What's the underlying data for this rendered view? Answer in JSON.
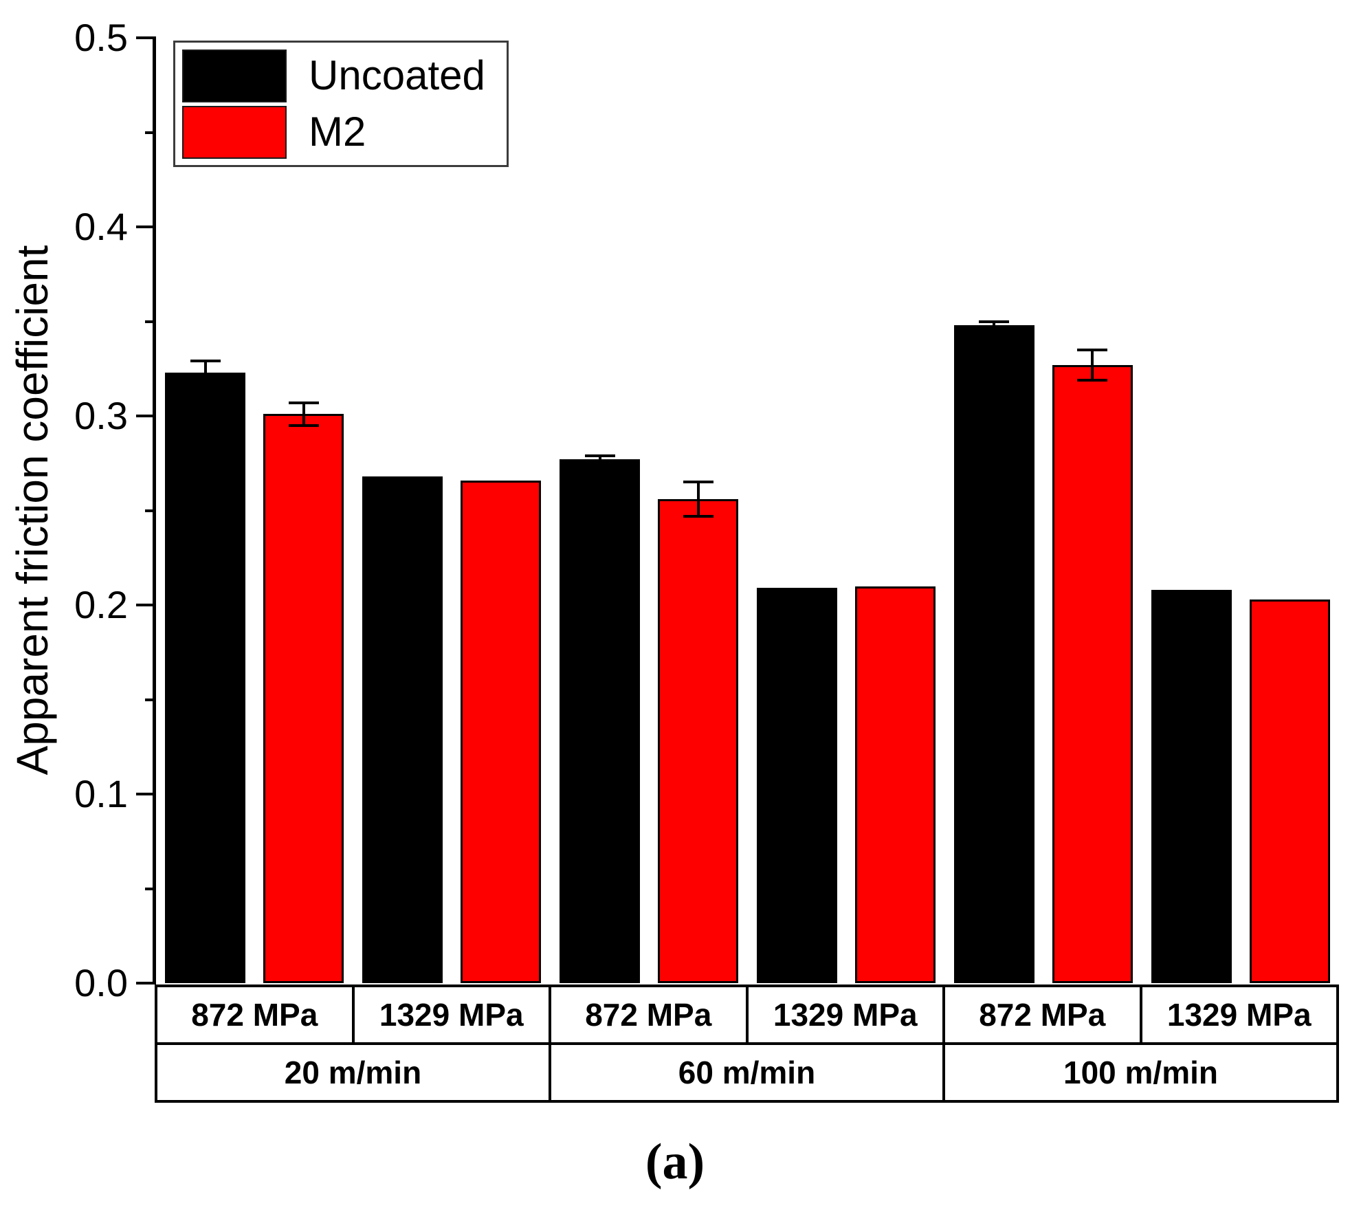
{
  "figure": {
    "caption": "(a)",
    "ylabel": "Apparent friction coefficient"
  },
  "legend": {
    "items": [
      {
        "label": "Uncoated",
        "color": "#000000"
      },
      {
        "label": "M2",
        "color": "#ff0000"
      }
    ]
  },
  "chart_data": {
    "type": "bar",
    "title": "",
    "xlabel": "",
    "ylabel": "Apparent friction coefficient",
    "ylim": [
      0,
      0.5
    ],
    "ytick_labels": [
      "0.0",
      "0.1",
      "0.2",
      "0.3",
      "0.4",
      "0.5"
    ],
    "ytick_values": [
      0.0,
      0.1,
      0.2,
      0.3,
      0.4,
      0.5
    ],
    "ytick_minor_values": [
      0.05,
      0.15,
      0.25,
      0.35,
      0.45
    ],
    "grid": false,
    "legend_position": "top-left",
    "categories": [
      {
        "pressure": "872 MPa",
        "speed": "20 m/min"
      },
      {
        "pressure": "1329 MPa",
        "speed": "20 m/min"
      },
      {
        "pressure": "872 MPa",
        "speed": "60 m/min"
      },
      {
        "pressure": "1329 MPa",
        "speed": "60 m/min"
      },
      {
        "pressure": "872 MPa",
        "speed": "100 m/min"
      },
      {
        "pressure": "1329 MPa",
        "speed": "100 m/min"
      }
    ],
    "pressure_labels": [
      "872 MPa",
      "1329 MPa",
      "872 MPa",
      "1329 MPa",
      "872 MPa",
      "1329 MPa"
    ],
    "speed_labels": [
      "20 m/min",
      "60 m/min",
      "100 m/min"
    ],
    "series": [
      {
        "name": "Uncoated",
        "color": "#000000",
        "values": [
          0.323,
          0.268,
          0.277,
          0.209,
          0.348,
          0.208
        ],
        "errors": [
          0.006,
          0,
          0.002,
          0,
          0.002,
          0
        ]
      },
      {
        "name": "M2",
        "color": "#ff0000",
        "values": [
          0.301,
          0.266,
          0.256,
          0.21,
          0.327,
          0.203
        ],
        "errors": [
          0.006,
          0,
          0.009,
          0,
          0.008,
          0
        ]
      }
    ]
  }
}
